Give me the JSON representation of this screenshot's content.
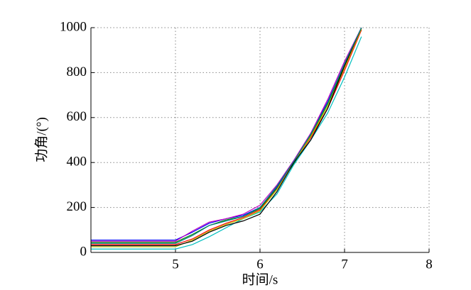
{
  "chart_data": {
    "type": "line",
    "xlabel": "时间/s",
    "ylabel": "功角/(°)",
    "x": [
      4,
      5,
      5.2,
      5.4,
      5.6,
      5.8,
      6,
      6.2,
      6.4,
      6.6,
      6.8,
      7,
      7.2
    ],
    "series": [
      {
        "color": "#0000ff",
        "values": [
          55,
          55,
          90,
          130,
          150,
          165,
          200,
          290,
          400,
          530,
          670,
          840,
          1000
        ]
      },
      {
        "color": "#008000",
        "values": [
          45,
          45,
          80,
          120,
          145,
          160,
          195,
          285,
          395,
          520,
          660,
          830,
          990
        ]
      },
      {
        "color": "#ff0000",
        "values": [
          35,
          35,
          60,
          100,
          130,
          155,
          190,
          280,
          400,
          510,
          640,
          810,
          990
        ]
      },
      {
        "color": "#00bfbf",
        "values": [
          15,
          15,
          35,
          70,
          110,
          150,
          180,
          260,
          390,
          500,
          620,
          780,
          960
        ]
      },
      {
        "color": "#bf00bf",
        "values": [
          50,
          50,
          95,
          135,
          150,
          170,
          210,
          300,
          410,
          530,
          680,
          850,
          1000
        ]
      },
      {
        "color": "#bfbf00",
        "values": [
          25,
          25,
          55,
          95,
          125,
          150,
          185,
          280,
          400,
          515,
          650,
          820,
          995
        ]
      },
      {
        "color": "#000000",
        "values": [
          30,
          30,
          50,
          90,
          120,
          140,
          170,
          270,
          400,
          500,
          640,
          830,
          1000
        ]
      },
      {
        "color": "#008080",
        "values": [
          40,
          40,
          75,
          120,
          140,
          160,
          200,
          295,
          405,
          525,
          665,
          840,
          1000
        ]
      }
    ],
    "xlim": [
      4,
      8
    ],
    "xticks": [
      5,
      6,
      7,
      8
    ],
    "ylim": [
      0,
      1000
    ],
    "yticks": [
      0,
      200,
      400,
      600,
      800,
      1000
    ],
    "grid": true
  }
}
